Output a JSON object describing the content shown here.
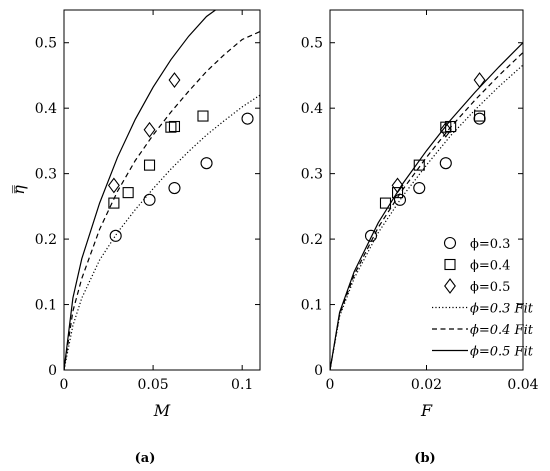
{
  "chart_data": [
    {
      "type": "scatter",
      "panel_label": "(a)",
      "xlabel": "M",
      "ylabel": "η̿",
      "xlim": [
        0,
        0.11
      ],
      "ylim": [
        0,
        0.55
      ],
      "xticks": [
        "0",
        "0.05",
        "0.1"
      ],
      "xtick_values": [
        0,
        0.05,
        0.1
      ],
      "yticks": [
        "0",
        "0.1",
        "0.2",
        "0.3",
        "0.4",
        "0.5"
      ],
      "ytick_values": [
        0,
        0.1,
        0.2,
        0.3,
        0.4,
        0.5
      ],
      "series": [
        {
          "marker": "circle",
          "points": [
            [
              0.029,
              0.205
            ],
            [
              0.048,
              0.26
            ],
            [
              0.062,
              0.278
            ],
            [
              0.08,
              0.316
            ],
            [
              0.103,
              0.384
            ]
          ]
        },
        {
          "marker": "square",
          "points": [
            [
              0.028,
              0.255
            ],
            [
              0.036,
              0.271
            ],
            [
              0.048,
              0.313
            ],
            [
              0.06,
              0.371
            ],
            [
              0.062,
              0.372
            ],
            [
              0.078,
              0.388
            ]
          ]
        },
        {
          "marker": "diamond",
          "points": [
            [
              0.028,
              0.282
            ],
            [
              0.048,
              0.367
            ],
            [
              0.062,
              0.443
            ]
          ]
        }
      ],
      "fits": [
        {
          "style": "dotted",
          "points": [
            [
              0,
              0
            ],
            [
              0.005,
              0.068
            ],
            [
              0.01,
              0.11
            ],
            [
              0.02,
              0.168
            ],
            [
              0.03,
              0.21
            ],
            [
              0.04,
              0.245
            ],
            [
              0.05,
              0.277
            ],
            [
              0.06,
              0.307
            ],
            [
              0.07,
              0.334
            ],
            [
              0.08,
              0.359
            ],
            [
              0.09,
              0.381
            ],
            [
              0.1,
              0.402
            ],
            [
              0.11,
              0.42
            ]
          ]
        },
        {
          "style": "dashed",
          "points": [
            [
              0,
              0
            ],
            [
              0.005,
              0.09
            ],
            [
              0.01,
              0.14
            ],
            [
              0.02,
              0.215
            ],
            [
              0.03,
              0.273
            ],
            [
              0.04,
              0.32
            ],
            [
              0.05,
              0.359
            ],
            [
              0.06,
              0.394
            ],
            [
              0.07,
              0.426
            ],
            [
              0.08,
              0.456
            ],
            [
              0.09,
              0.482
            ],
            [
              0.1,
              0.505
            ],
            [
              0.11,
              0.517
            ]
          ]
        },
        {
          "style": "solid",
          "points": [
            [
              0,
              0
            ],
            [
              0.005,
              0.11
            ],
            [
              0.01,
              0.17
            ],
            [
              0.02,
              0.255
            ],
            [
              0.03,
              0.325
            ],
            [
              0.04,
              0.383
            ],
            [
              0.05,
              0.432
            ],
            [
              0.06,
              0.474
            ],
            [
              0.07,
              0.51
            ],
            [
              0.08,
              0.54
            ],
            [
              0.085,
              0.55
            ]
          ]
        }
      ]
    },
    {
      "type": "scatter",
      "panel_label": "(b)",
      "xlabel": "F",
      "ylabel": "",
      "xlim": [
        0,
        0.04
      ],
      "ylim": [
        0,
        0.55
      ],
      "xticks": [
        "0",
        "0.02",
        "0.04"
      ],
      "xtick_values": [
        0,
        0.02,
        0.04
      ],
      "yticks": [
        "0",
        "0.1",
        "0.2",
        "0.3",
        "0.4",
        "0.5"
      ],
      "ytick_values": [
        0,
        0.1,
        0.2,
        0.3,
        0.4,
        0.5
      ],
      "legend_position": "bottom-right",
      "legend": [
        "ϕ=0.3",
        "ϕ=0.4",
        "ϕ=0.5",
        "ϕ=0.3 Fit",
        "ϕ=0.4 Fit",
        "ϕ=0.5 Fit"
      ],
      "series": [
        {
          "name": "ϕ=0.3",
          "marker": "circle",
          "points": [
            [
              0.0085,
              0.205
            ],
            [
              0.0145,
              0.26
            ],
            [
              0.0185,
              0.278
            ],
            [
              0.024,
              0.316
            ],
            [
              0.031,
              0.384
            ]
          ]
        },
        {
          "name": "ϕ=0.4",
          "marker": "square",
          "points": [
            [
              0.0115,
              0.255
            ],
            [
              0.014,
              0.271
            ],
            [
              0.0185,
              0.313
            ],
            [
              0.024,
              0.371
            ],
            [
              0.025,
              0.372
            ],
            [
              0.031,
              0.388
            ]
          ]
        },
        {
          "name": "ϕ=0.5",
          "marker": "diamond",
          "points": [
            [
              0.014,
              0.282
            ],
            [
              0.024,
              0.367
            ],
            [
              0.031,
              0.443
            ]
          ]
        }
      ],
      "fits": [
        {
          "name": "ϕ=0.3 Fit",
          "style": "dotted",
          "points": [
            [
              0,
              0
            ],
            [
              0.002,
              0.082
            ],
            [
              0.005,
              0.14
            ],
            [
              0.01,
              0.21
            ],
            [
              0.015,
              0.265
            ],
            [
              0.02,
              0.313
            ],
            [
              0.025,
              0.358
            ],
            [
              0.03,
              0.397
            ],
            [
              0.035,
              0.433
            ],
            [
              0.04,
              0.466
            ]
          ]
        },
        {
          "name": "ϕ=0.4 Fit",
          "style": "dashed",
          "points": [
            [
              0,
              0
            ],
            [
              0.002,
              0.085
            ],
            [
              0.005,
              0.145
            ],
            [
              0.01,
              0.218
            ],
            [
              0.015,
              0.275
            ],
            [
              0.02,
              0.325
            ],
            [
              0.025,
              0.371
            ],
            [
              0.03,
              0.412
            ],
            [
              0.035,
              0.45
            ],
            [
              0.04,
              0.485
            ]
          ]
        },
        {
          "name": "ϕ=0.5 Fit",
          "style": "solid",
          "points": [
            [
              0,
              0
            ],
            [
              0.002,
              0.088
            ],
            [
              0.005,
              0.15
            ],
            [
              0.01,
              0.225
            ],
            [
              0.015,
              0.284
            ],
            [
              0.02,
              0.335
            ],
            [
              0.025,
              0.382
            ],
            [
              0.03,
              0.424
            ],
            [
              0.035,
              0.463
            ],
            [
              0.04,
              0.5
            ]
          ]
        }
      ]
    }
  ]
}
